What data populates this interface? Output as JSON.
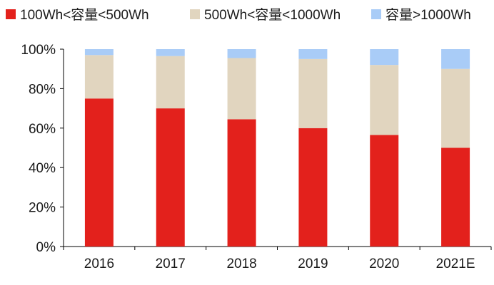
{
  "chart_data": {
    "type": "bar",
    "stacked": true,
    "title": "",
    "xlabel": "",
    "ylabel": "",
    "categories": [
      "2016",
      "2017",
      "2018",
      "2019",
      "2020",
      "2021E"
    ],
    "series": [
      {
        "name": "100Wh<容量<500Wh",
        "color": "#e3211c",
        "values": [
          75,
          70,
          64.5,
          60,
          56.5,
          50
        ]
      },
      {
        "name": "500Wh<容量<1000Wh",
        "color": "#e1d5bf",
        "values": [
          22,
          26.5,
          31,
          35,
          35.5,
          40
        ]
      },
      {
        "name": "容量>1000Wh",
        "color": "#a9ccf7",
        "values": [
          3,
          3.5,
          4.5,
          5,
          8,
          10
        ]
      }
    ],
    "ylim": [
      0,
      100
    ],
    "yticks": [
      0,
      20,
      40,
      60,
      80,
      100
    ],
    "ytick_labels": [
      "0%",
      "20%",
      "40%",
      "60%",
      "80%",
      "100%"
    ],
    "grid": false,
    "legend_position": "top"
  }
}
